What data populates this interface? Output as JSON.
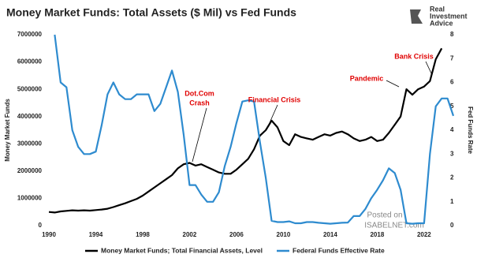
{
  "chart_data": {
    "type": "line",
    "title": "Money Market Funds: Total Assets ($ Mil) vs Fed Funds",
    "logo": [
      "Real",
      "Investment",
      "Advice"
    ],
    "watermark": [
      "Posted on",
      "ISABELNET.com"
    ],
    "ylabel": "Money Market Funds",
    "y2label": "Fed Funds Rate",
    "annotations": [
      "Dot.Com",
      "Crash",
      "Financial Crisis",
      "Pandemic",
      "Bank Crisis"
    ],
    "x": [
      1990,
      1990.5,
      1991,
      1991.5,
      1992,
      1992.5,
      1993,
      1993.5,
      1994,
      1994.5,
      1995,
      1995.5,
      1996,
      1996.5,
      1997,
      1997.5,
      1998,
      1998.5,
      1999,
      1999.5,
      2000,
      2000.5,
      2001,
      2001.5,
      2002,
      2002.5,
      2003,
      2003.5,
      2004,
      2004.5,
      2005,
      2005.5,
      2006,
      2006.5,
      2007,
      2007.5,
      2008,
      2008.5,
      2009,
      2009.5,
      2010,
      2010.5,
      2011,
      2011.5,
      2012,
      2012.5,
      2013,
      2013.5,
      2014,
      2014.5,
      2015,
      2015.5,
      2016,
      2016.5,
      2017,
      2017.5,
      2018,
      2018.5,
      2019,
      2019.5,
      2020,
      2020.5,
      2021,
      2021.5,
      2022,
      2022.5,
      2023,
      2023.5,
      2024,
      2024.5
    ],
    "series": [
      {
        "name": "Money Market Funds; Total Financial Assets, Level",
        "color": "#000000",
        "values": [
          500000,
          480000,
          520000,
          540000,
          560000,
          550000,
          560000,
          550000,
          570000,
          590000,
          620000,
          680000,
          750000,
          820000,
          900000,
          980000,
          1100000,
          1250000,
          1400000,
          1550000,
          1700000,
          1850000,
          2100000,
          2250000,
          2300000,
          2200000,
          2250000,
          2150000,
          2050000,
          1950000,
          1900000,
          1900000,
          2050000,
          2250000,
          2450000,
          2800000,
          3300000,
          3500000,
          3850000,
          3600000,
          3100000,
          2950000,
          3350000,
          3250000,
          3200000,
          3150000,
          3250000,
          3350000,
          3300000,
          3400000,
          3450000,
          3350000,
          3200000,
          3100000,
          3150000,
          3250000,
          3100000,
          3150000,
          3400000,
          3700000,
          4000000,
          5000000,
          4800000,
          5000000,
          5100000,
          5300000,
          6100000,
          6500000,
          null,
          null
        ]
      },
      {
        "name": "Federal Funds Effective Rate",
        "color": "#2e8bcf",
        "axis": "y2",
        "values": [
          null,
          8.0,
          6.0,
          5.8,
          4.0,
          3.3,
          3.0,
          3.0,
          3.1,
          4.2,
          5.5,
          6.0,
          5.5,
          5.3,
          5.3,
          5.5,
          5.5,
          5.5,
          4.8,
          5.1,
          5.8,
          6.5,
          5.6,
          3.8,
          1.7,
          1.7,
          1.3,
          1.0,
          1.0,
          1.4,
          2.5,
          3.3,
          4.3,
          5.2,
          5.25,
          5.2,
          3.5,
          2.0,
          0.2,
          0.15,
          0.15,
          0.18,
          0.1,
          0.1,
          0.15,
          0.15,
          0.12,
          0.1,
          0.08,
          0.1,
          0.12,
          0.13,
          0.4,
          0.4,
          0.7,
          1.15,
          1.5,
          1.9,
          2.4,
          2.2,
          1.5,
          0.1,
          0.08,
          0.1,
          0.1,
          3.0,
          5.0,
          5.33,
          5.33,
          4.6
        ]
      }
    ],
    "xlim": [
      1990,
      2024.7
    ],
    "xticks": [
      1990,
      1994,
      1998,
      2002,
      2006,
      2010,
      2014,
      2018,
      2022
    ],
    "ylim": [
      0,
      7000000
    ],
    "yticks": [
      0,
      1000000,
      2000000,
      3000000,
      4000000,
      5000000,
      6000000,
      7000000
    ],
    "y2lim": [
      0,
      8
    ],
    "y2ticks": [
      0,
      1,
      2,
      3,
      4,
      5,
      6,
      7,
      8
    ]
  }
}
